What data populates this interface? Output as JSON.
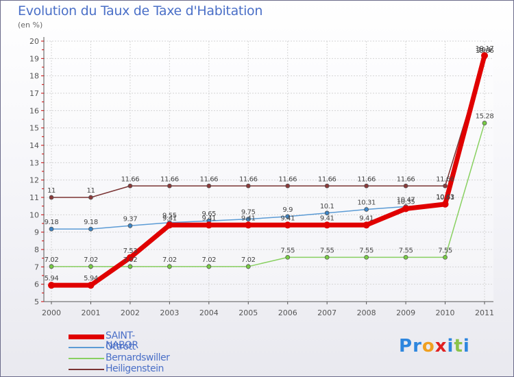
{
  "title": "Evolution du Taux de Taxe d'Habitation",
  "subtitle": "(en %)",
  "brand": {
    "letters": [
      "P",
      "r",
      "o",
      "x",
      "i",
      "t",
      "i"
    ],
    "colors": [
      "#2e86de",
      "#2e86de",
      "#f0a020",
      "#e02020",
      "#2e86de",
      "#8bc34a",
      "#2e86de"
    ]
  },
  "chart_data": {
    "type": "line",
    "title": "Evolution du Taux de Taxe d'Habitation",
    "ylabel": "(en %)",
    "xlabel": "",
    "ylim": [
      5,
      20
    ],
    "yticks": [
      "5",
      "6",
      "7",
      "8",
      "9",
      "10",
      "11",
      "12",
      "13",
      "14",
      "15",
      "16",
      "17",
      "18",
      "19",
      "20"
    ],
    "x": [
      "2000",
      "2001",
      "2002",
      "2003",
      "2004",
      "2005",
      "2006",
      "2007",
      "2008",
      "2009",
      "2010",
      "2011"
    ],
    "legend_position": "bottom-left",
    "series": [
      {
        "name": "Heiligenstein",
        "color": "#7a3333",
        "markerFill": "#8a3a3a",
        "width": 1.5,
        "marker": 3,
        "values": [
          11,
          11,
          11.66,
          11.66,
          11.66,
          11.66,
          11.66,
          11.66,
          11.66,
          11.66,
          11.66,
          19.06
        ],
        "labels": [
          "11",
          "11",
          "11.66",
          "11.66",
          "11.66",
          "11.66",
          "11.66",
          "11.66",
          "11.66",
          "11.66",
          "11.66",
          "19.06"
        ]
      },
      {
        "name": "Bernardswiller",
        "color": "#88d060",
        "markerFill": "#77cc44",
        "width": 1.5,
        "marker": 3,
        "values": [
          7.02,
          7.02,
          7.02,
          7.02,
          7.02,
          7.02,
          7.55,
          7.55,
          7.55,
          7.55,
          7.55,
          15.28
        ],
        "labels": [
          "7.02",
          "7.02",
          "7.02",
          "7.02",
          "7.02",
          "7.02",
          "7.55",
          "7.55",
          "7.55",
          "7.55",
          "7.55",
          "15.28"
        ]
      },
      {
        "name": "Ottrott",
        "color": "#5b9bd5",
        "markerFill": "#3d85c6",
        "width": 1.5,
        "marker": 3,
        "values": [
          9.18,
          9.18,
          9.37,
          9.55,
          9.65,
          9.75,
          9.9,
          10.1,
          10.31,
          10.47,
          10.63,
          19.1
        ],
        "labels": [
          "9.18",
          "9.18",
          "9.37",
          "9.55",
          "9.65",
          "9.75",
          "9.9",
          "10.1",
          "10.31",
          "10.47",
          "10.63",
          "19.1"
        ]
      },
      {
        "name": "SAINT-NABOR",
        "color": "#e00000",
        "markerFill": "#e00000",
        "width": 7,
        "marker": 5,
        "values": [
          5.94,
          5.94,
          7.53,
          9.41,
          9.41,
          9.41,
          9.41,
          9.41,
          9.41,
          10.35,
          10.61,
          19.17
        ],
        "labels": [
          "5.94",
          "5.94",
          "7.53",
          "9.41",
          "9.41",
          "9.41",
          "9.41",
          "9.41",
          "9.41",
          "10.35",
          "10.61",
          "19.17"
        ]
      }
    ]
  },
  "legend": [
    {
      "name": "SAINT-NABOR",
      "color": "#e00000",
      "height": 7
    },
    {
      "name": "Ottrott",
      "color": "#5b9bd5",
      "height": 2
    },
    {
      "name": "Bernardswiller",
      "color": "#88d060",
      "height": 2
    },
    {
      "name": "Heiligenstein",
      "color": "#7a3333",
      "height": 2
    }
  ]
}
